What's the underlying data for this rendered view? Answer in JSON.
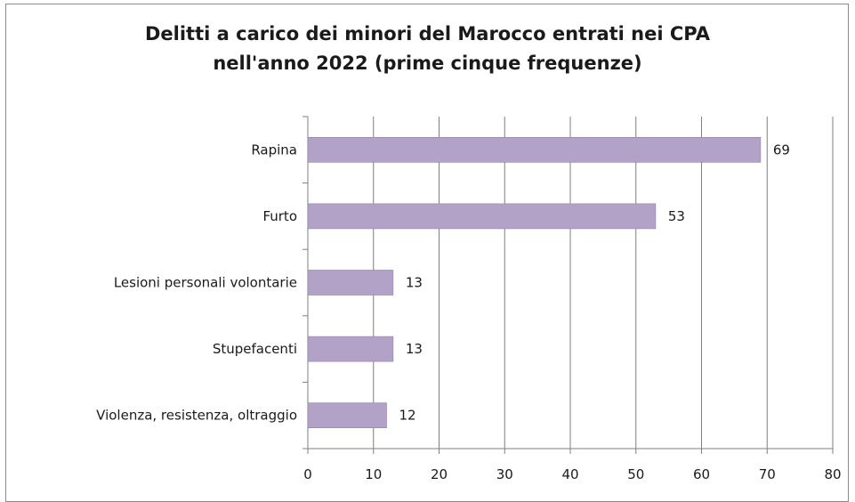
{
  "chart_data": {
    "type": "bar",
    "orientation": "horizontal",
    "title_lines": [
      "Delitti  a carico dei minori del Marocco entrati nei CPA",
      "nell'anno 2022 (prime cinque frequenze)"
    ],
    "categories": [
      "Rapina",
      "Furto",
      "Lesioni personali volontarie",
      "Stupefacenti",
      "Violenza, resistenza, oltraggio"
    ],
    "values": [
      69,
      53,
      13,
      13,
      12
    ],
    "xlim": [
      0,
      80
    ],
    "xticks": [
      0,
      10,
      20,
      30,
      40,
      50,
      60,
      70,
      80
    ],
    "grid": "vertical",
    "legend": "none",
    "colors": {
      "bar": "#b3a2c7",
      "bar_edge": "#8f7dab",
      "grid": "#7f7f7f",
      "axis": "#7f7f7f"
    }
  }
}
